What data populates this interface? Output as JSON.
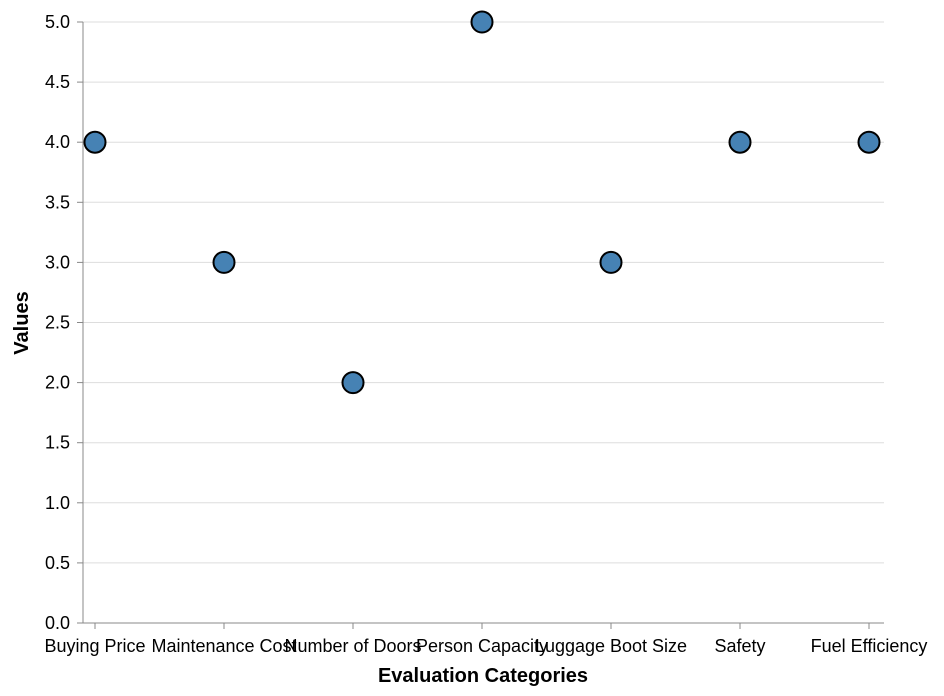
{
  "chart_data": {
    "type": "scatter",
    "xlabel": "Evaluation Categories",
    "ylabel": "Values",
    "categories": [
      "Buying Price",
      "Maintenance Cost",
      "Number of Doors",
      "Person Capacity",
      "Luggage Boot Size",
      "Safety",
      "Fuel Efficiency"
    ],
    "values": [
      4,
      3,
      2,
      5,
      3,
      4,
      4
    ],
    "ylim": [
      0,
      5
    ],
    "yticks": [
      "0.0",
      "0.5",
      "1.0",
      "1.5",
      "2.0",
      "2.5",
      "3.0",
      "3.5",
      "4.0",
      "4.5",
      "5.0"
    ],
    "grid": true,
    "point_color": "#4682b4",
    "point_stroke": "#000000",
    "grid_color": "#dddddd",
    "axis_color": "#888888"
  }
}
